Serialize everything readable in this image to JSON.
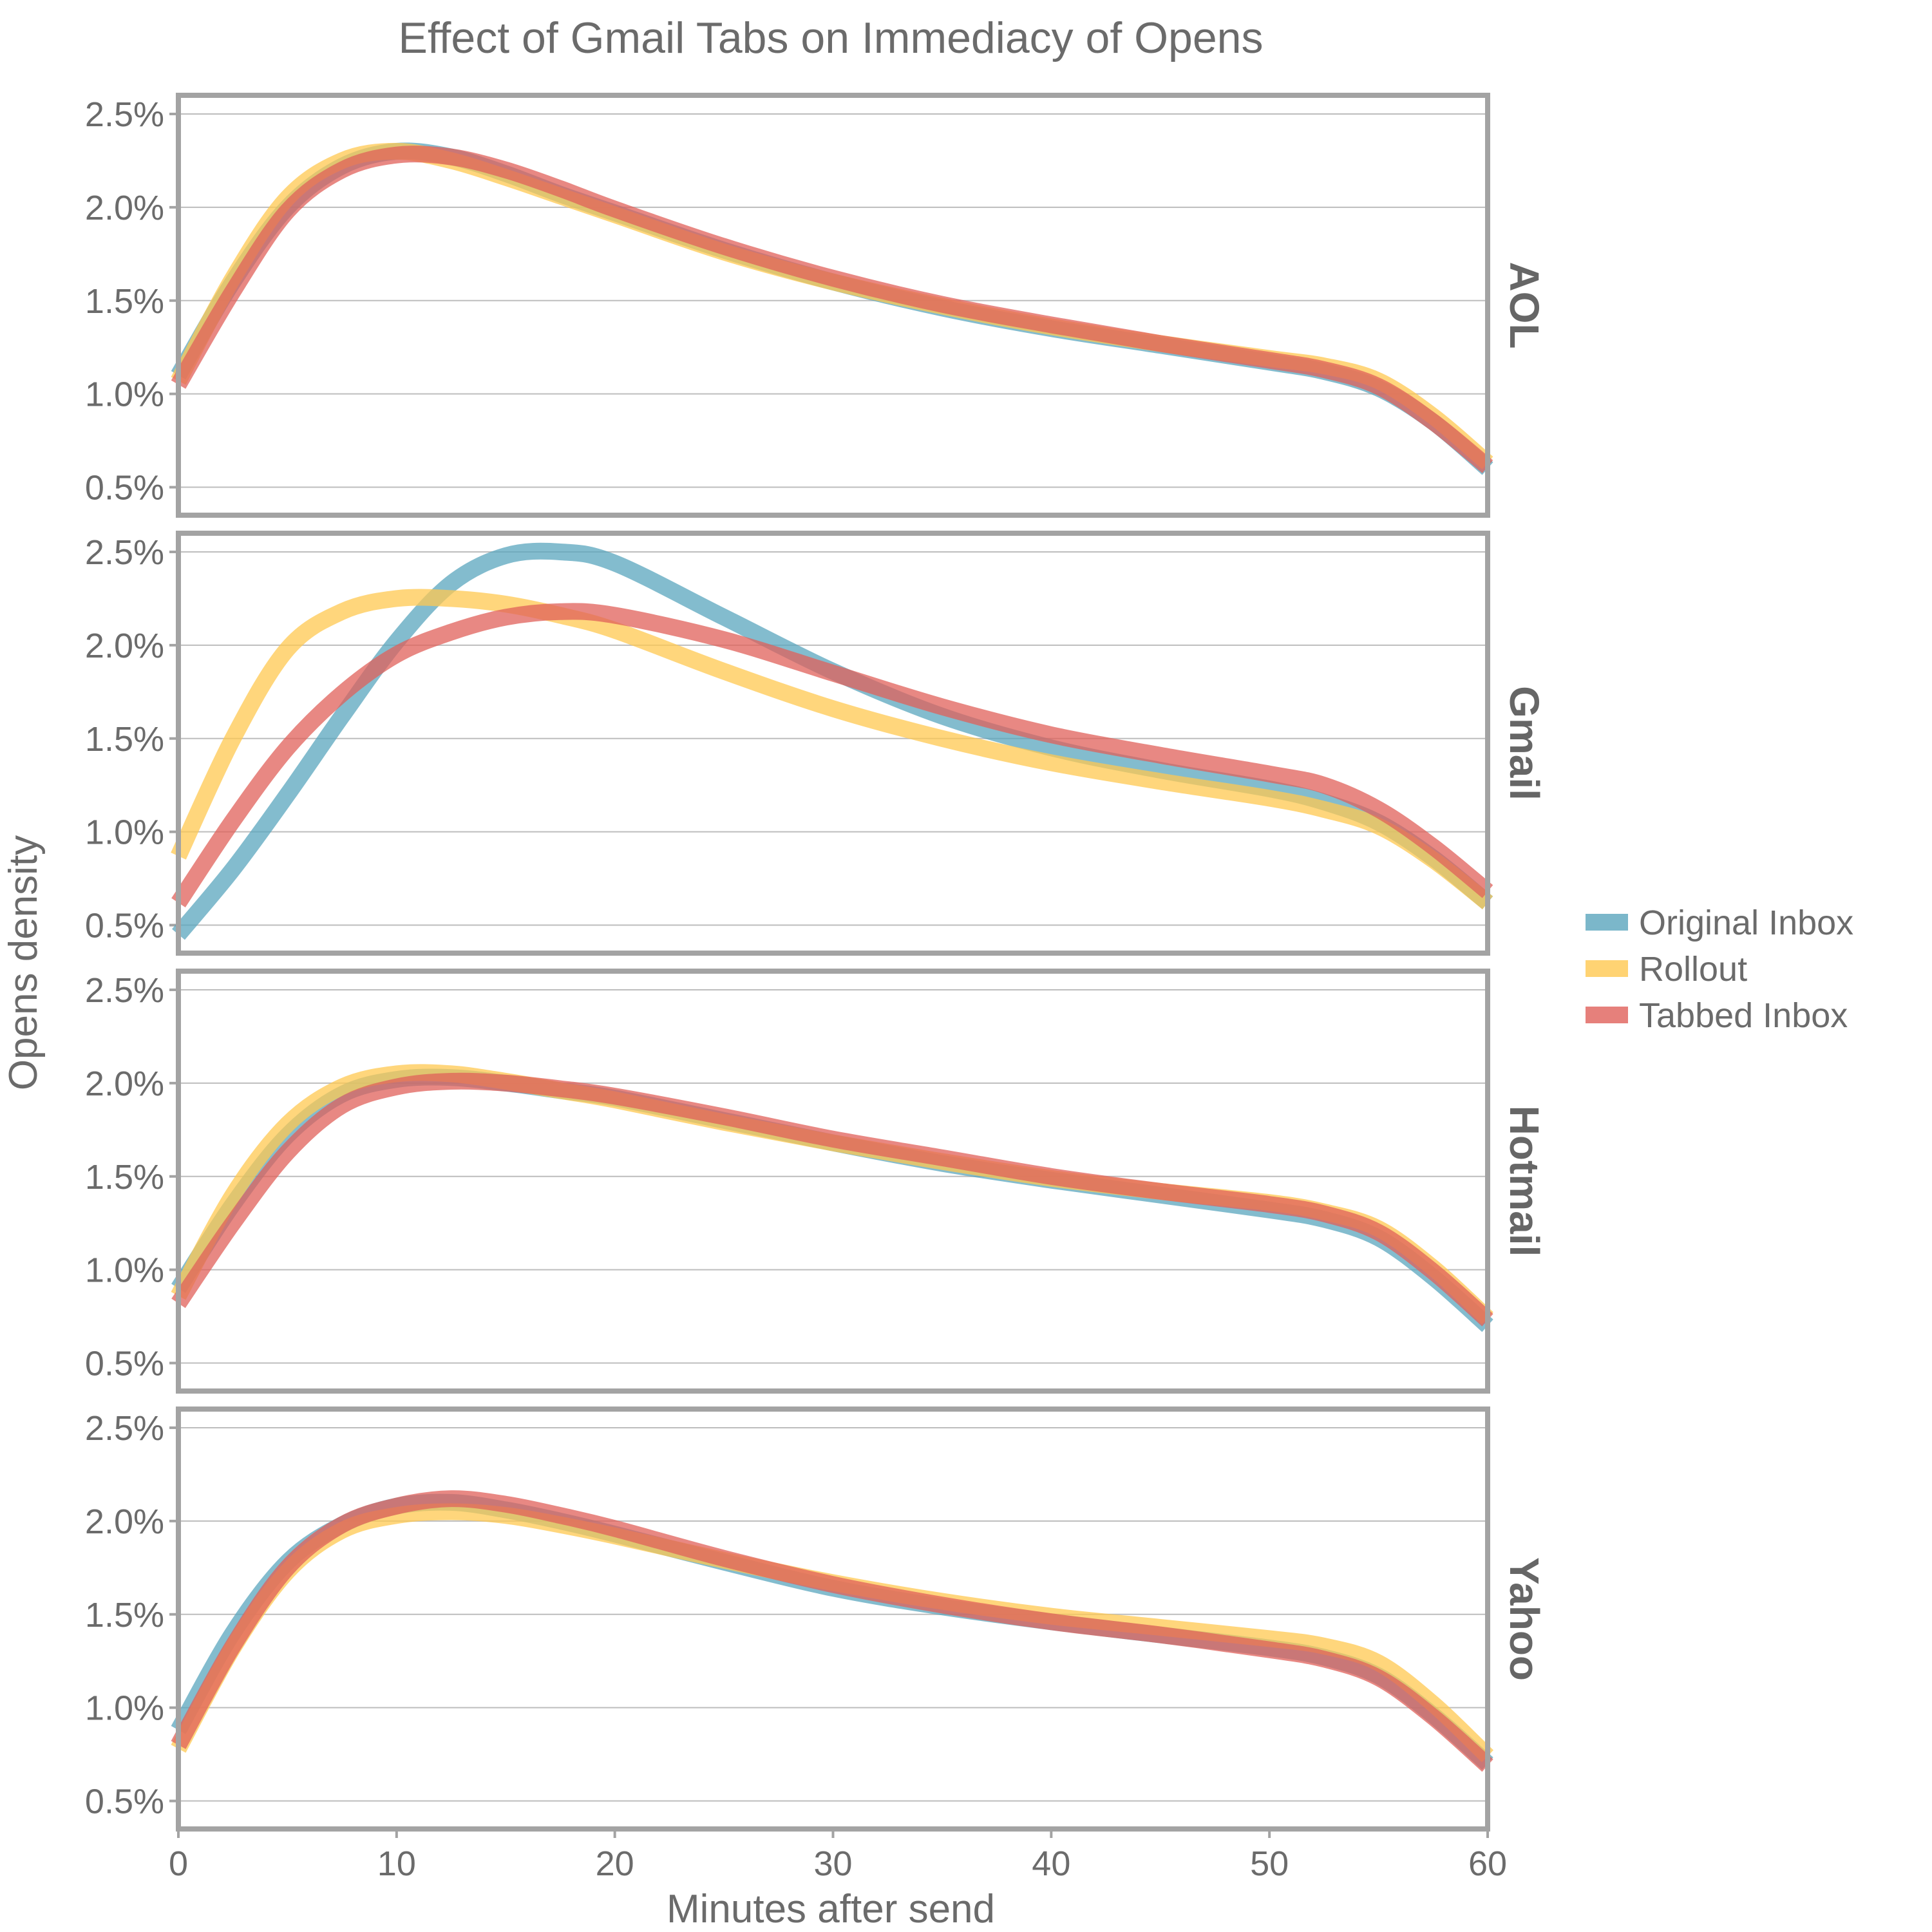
{
  "chart_data": {
    "type": "line",
    "title": "Effect of Gmail Tabs on Immediacy of Opens",
    "xlabel": "Minutes after send",
    "ylabel": "Opens density",
    "xlim": [
      0,
      60
    ],
    "ylim": [
      0.35,
      2.6
    ],
    "x_ticks": [
      "0",
      "10",
      "20",
      "30",
      "40",
      "50",
      "60"
    ],
    "y_ticks": [
      "0.5%",
      "1.0%",
      "1.5%",
      "2.0%",
      "2.5%"
    ],
    "legend": [
      {
        "name": "Original Inbox",
        "color": "#5aa5bd"
      },
      {
        "name": "Rollout",
        "color": "#ffc850"
      },
      {
        "name": "Tabbed Inbox",
        "color": "#e0605a"
      }
    ],
    "x": [
      0,
      2.5,
      5,
      7.5,
      10,
      12.5,
      15,
      17.5,
      20,
      25,
      30,
      35,
      40,
      45,
      50,
      52.5,
      55,
      57.5,
      60
    ],
    "panels": [
      {
        "name": "AOL",
        "series": [
          {
            "name": "Original Inbox",
            "values": [
              1.1,
              1.6,
              2.0,
              2.22,
              2.3,
              2.27,
              2.18,
              2.07,
              1.97,
              1.77,
              1.6,
              1.46,
              1.35,
              1.26,
              1.17,
              1.12,
              1.03,
              0.85,
              0.6
            ]
          },
          {
            "name": "Rollout",
            "values": [
              1.07,
              1.62,
              2.05,
              2.25,
              2.3,
              2.25,
              2.16,
              2.06,
              1.96,
              1.76,
              1.6,
              1.47,
              1.36,
              1.27,
              1.19,
              1.15,
              1.07,
              0.88,
              0.63
            ]
          },
          {
            "name": "Tabbed Inbox",
            "values": [
              1.05,
              1.55,
              1.98,
              2.2,
              2.28,
              2.27,
              2.2,
              2.1,
              1.99,
              1.79,
              1.62,
              1.48,
              1.37,
              1.27,
              1.18,
              1.13,
              1.04,
              0.85,
              0.61
            ]
          }
        ]
      },
      {
        "name": "Gmail",
        "series": [
          {
            "name": "Original Inbox",
            "values": [
              0.45,
              0.8,
              1.2,
              1.62,
              2.02,
              2.33,
              2.48,
              2.5,
              2.44,
              2.15,
              1.86,
              1.62,
              1.45,
              1.33,
              1.23,
              1.16,
              1.05,
              0.86,
              0.62
            ]
          },
          {
            "name": "Rollout",
            "values": [
              0.87,
              1.5,
              1.98,
              2.18,
              2.25,
              2.25,
              2.22,
              2.16,
              2.08,
              1.86,
              1.66,
              1.5,
              1.37,
              1.27,
              1.18,
              1.12,
              1.03,
              0.85,
              0.62
            ]
          },
          {
            "name": "Tabbed Inbox",
            "values": [
              0.62,
              1.06,
              1.45,
              1.74,
              1.95,
              2.07,
              2.15,
              2.18,
              2.16,
              2.03,
              1.85,
              1.67,
              1.52,
              1.41,
              1.31,
              1.25,
              1.12,
              0.92,
              0.68
            ]
          }
        ]
      },
      {
        "name": "Hotmail",
        "series": [
          {
            "name": "Original Inbox",
            "values": [
              0.9,
              1.35,
              1.72,
              1.94,
              2.02,
              2.03,
              2.0,
              1.96,
              1.92,
              1.8,
              1.68,
              1.57,
              1.48,
              1.4,
              1.32,
              1.27,
              1.17,
              0.96,
              0.7
            ]
          },
          {
            "name": "Rollout",
            "values": [
              0.86,
              1.4,
              1.78,
              1.98,
              2.05,
              2.05,
              2.01,
              1.96,
              1.91,
              1.79,
              1.68,
              1.58,
              1.49,
              1.42,
              1.36,
              1.31,
              1.22,
              1.01,
              0.74
            ]
          },
          {
            "name": "Tabbed Inbox",
            "values": [
              0.82,
              1.25,
              1.63,
              1.88,
              1.98,
              2.01,
              2.0,
              1.97,
              1.93,
              1.82,
              1.7,
              1.6,
              1.5,
              1.42,
              1.35,
              1.3,
              1.2,
              0.99,
              0.73
            ]
          }
        ]
      },
      {
        "name": "Yahoo",
        "series": [
          {
            "name": "Original Inbox",
            "values": [
              0.88,
              1.4,
              1.78,
              1.98,
              2.08,
              2.1,
              2.06,
              2.0,
              1.93,
              1.78,
              1.64,
              1.54,
              1.46,
              1.39,
              1.32,
              1.27,
              1.17,
              0.96,
              0.7
            ]
          },
          {
            "name": "Rollout",
            "values": [
              0.78,
              1.32,
              1.73,
              1.95,
              2.03,
              2.05,
              2.03,
              1.98,
              1.92,
              1.79,
              1.67,
              1.57,
              1.49,
              1.43,
              1.37,
              1.33,
              1.24,
              1.02,
              0.74
            ]
          },
          {
            "name": "Tabbed Inbox",
            "values": [
              0.8,
              1.33,
              1.75,
              1.98,
              2.08,
              2.12,
              2.09,
              2.03,
              1.96,
              1.8,
              1.66,
              1.55,
              1.46,
              1.39,
              1.31,
              1.26,
              1.16,
              0.95,
              0.69
            ]
          }
        ]
      }
    ]
  }
}
